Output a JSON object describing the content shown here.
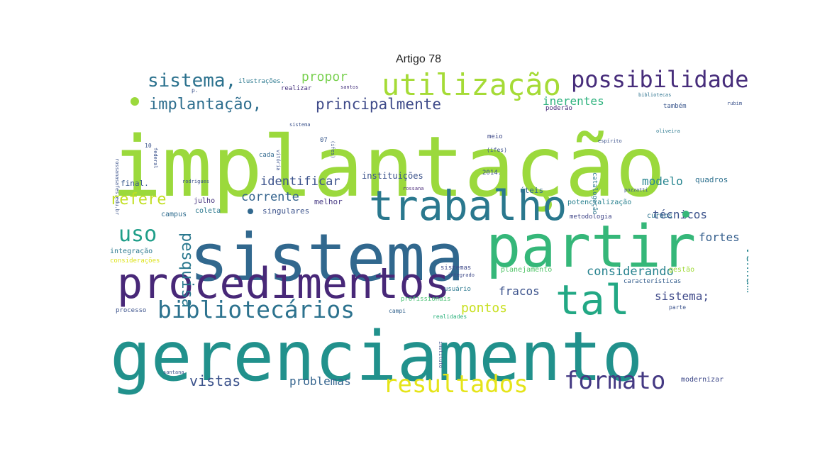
{
  "title": "Artigo 78",
  "words": [
    {
      "text": "implantação",
      "color": "#9bd93c"
    },
    {
      "text": "gerenciamento",
      "color": "#21918c"
    },
    {
      "text": "sistema",
      "color": "#31688e"
    },
    {
      "text": "partir",
      "color": "#35b779"
    },
    {
      "text": "procedimentos",
      "color": "#482878"
    },
    {
      "text": "trabalho",
      "color": "#2a788e"
    },
    {
      "text": "tal",
      "color": "#22a884"
    },
    {
      "text": "utilização",
      "color": "#a5db36"
    },
    {
      "text": "possibilidade",
      "color": "#472d7b"
    },
    {
      "text": "bibliotecários",
      "color": "#2c728e"
    },
    {
      "text": "resultados",
      "color": "#e5e419"
    },
    {
      "text": "formato",
      "color": "#443983"
    },
    {
      "text": "sistema,",
      "color": "#2c728e"
    },
    {
      "text": "implantação,",
      "color": "#2e6e8e"
    },
    {
      "text": "principalmente",
      "color": "#3e4a89"
    },
    {
      "text": "propor",
      "color": "#7ad151"
    },
    {
      "text": "inerentes",
      "color": "#2db27d"
    },
    {
      "text": "uso",
      "color": "#1f9e89"
    },
    {
      "text": "refere",
      "color": "#c2df23"
    },
    {
      "text": "pesquisa",
      "color": "#2a788e"
    },
    {
      "text": "identificar",
      "color": "#3b528b"
    },
    {
      "text": "corrente",
      "color": "#33638d"
    },
    {
      "text": "modelo",
      "color": "#25848e"
    },
    {
      "text": "técnicos",
      "color": "#3b528b"
    },
    {
      "text": "fortes",
      "color": "#355f8d"
    },
    {
      "text": "venham",
      "color": "#25848e"
    },
    {
      "text": "considerando",
      "color": "#26828e"
    },
    {
      "text": "fracos",
      "color": "#3b528b"
    },
    {
      "text": "pontos",
      "color": "#c8e020"
    },
    {
      "text": "sistema;",
      "color": "#3e4989"
    },
    {
      "text": "vistas",
      "color": "#3b528b"
    },
    {
      "text": "problemas",
      "color": "#33638d"
    },
    {
      "text": "instituições",
      "color": "#3b528b"
    },
    {
      "text": "quadros",
      "color": "#2d708e"
    },
    {
      "text": "final.",
      "color": "#38588c"
    },
    {
      "text": "julho",
      "color": "#46337e"
    },
    {
      "text": "coleta",
      "color": "#2a788e"
    },
    {
      "text": "campus",
      "color": "#2f6c8e"
    },
    {
      "text": "singulares",
      "color": "#3b528b"
    },
    {
      "text": "melhor",
      "color": "#453882"
    },
    {
      "text": "úteis",
      "color": "#31688e"
    },
    {
      "text": "potencialização",
      "color": "#27808e"
    },
    {
      "text": "metodologia",
      "color": "#404688"
    },
    {
      "text": "cursos",
      "color": "#2c728e"
    },
    {
      "text": "integração",
      "color": "#2a788e"
    },
    {
      "text": "considerações",
      "color": "#dde318"
    },
    {
      "text": "sistemas",
      "color": "#3e4989"
    },
    {
      "text": "planejamento",
      "color": "#52c569"
    },
    {
      "text": "gestão",
      "color": "#a0da39"
    },
    {
      "text": "características",
      "color": "#355e8d"
    },
    {
      "text": "usuário",
      "color": "#2a788e"
    },
    {
      "text": "profissionais",
      "color": "#44bf70"
    },
    {
      "text": "processo",
      "color": "#3b528b"
    },
    {
      "text": "campi",
      "color": "#33638d"
    },
    {
      "text": "realidades",
      "color": "#2db27d"
    },
    {
      "text": "parte",
      "color": "#3b528b"
    },
    {
      "text": "modernizar",
      "color": "#3e4989"
    },
    {
      "text": "ilustrações.",
      "color": "#2a788e"
    },
    {
      "text": "realizar",
      "color": "#46327e"
    },
    {
      "text": "poderão",
      "color": "#472a7a"
    },
    {
      "text": "também",
      "color": "#39568c"
    },
    {
      "text": "meio",
      "color": "#3e4989"
    },
    {
      "text": "cada",
      "color": "#31688e"
    },
    {
      "text": "catalogação",
      "color": "#2a788e"
    },
    {
      "text": "2014.",
      "color": "#3b528b"
    },
    {
      "text": "(ifes)",
      "color": "#3b528b"
    },
    {
      "text": "07",
      "color": "#38588c"
    },
    {
      "text": "rodrigues",
      "color": "#3b528b"
    },
    {
      "text": "rossana",
      "color": "#482878"
    },
    {
      "text": "pozzatti",
      "color": "#3b528b"
    },
    {
      "text": "integrado",
      "color": "#3e4989"
    },
    {
      "text": "instituto",
      "color": "#3b528b"
    },
    {
      "text": "santana",
      "color": "#3b528b"
    },
    {
      "text": "federal",
      "color": "#3b528b"
    },
    {
      "text": "p.",
      "color": "#3b528b"
    },
    {
      "text": "10",
      "color": "#3b528b"
    },
    {
      "text": "santos",
      "color": "#46337e"
    },
    {
      "text": "bibliotecas",
      "color": "#2c728e"
    },
    {
      "text": "rubim",
      "color": "#3b528b"
    },
    {
      "text": "oliveira",
      "color": "#2a788e"
    },
    {
      "text": "espírito",
      "color": "#3b528b"
    },
    {
      "text": "rossanasafes.edu.br",
      "color": "#3b528b"
    },
    {
      "text": "sistema",
      "color": "#3b528b"
    },
    {
      "text": "vitória",
      "color": "#3b528b"
    },
    {
      "text": "(ifes)",
      "color": "#3b528b"
    }
  ]
}
